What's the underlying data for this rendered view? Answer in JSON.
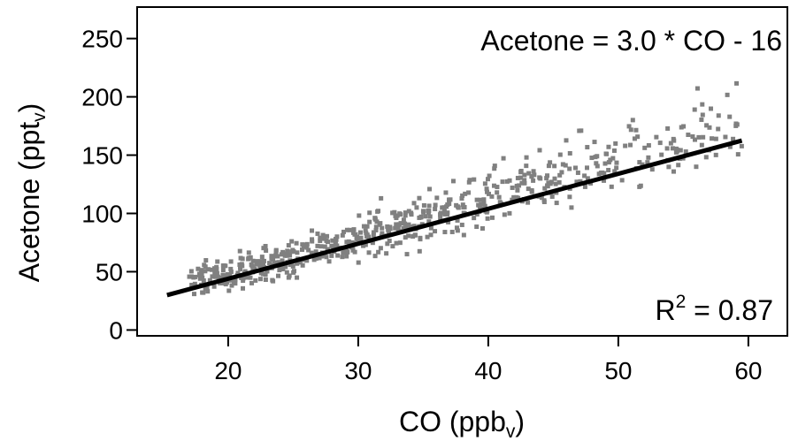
{
  "chart_data": {
    "type": "scatter",
    "xlabel": {
      "main": "CO (ppb",
      "sub": "v",
      "close": ")"
    },
    "ylabel": {
      "main": "Acetone (ppt",
      "sub": "v",
      "close": ")"
    },
    "xlim": [
      13,
      63
    ],
    "ylim": [
      -5,
      277
    ],
    "x_ticks": [
      20,
      30,
      40,
      50,
      60
    ],
    "y_ticks": [
      0,
      50,
      100,
      150,
      200,
      250
    ],
    "grid": false,
    "marker_color": "#808080",
    "fit_color": "#000000",
    "fit_line": {
      "slope": 3.0,
      "intercept": -16,
      "x_range": [
        15.3,
        59.5
      ]
    },
    "annotations": {
      "equation": "Acetone = 3.0 * CO - 16",
      "r2_prefix": "R",
      "r2_sup": "2",
      "r2_value": " = 0.87"
    },
    "scatter_regions": [
      {
        "x_range": [
          17,
          21
        ],
        "y_center": [
          3.0,
          -11
        ],
        "spread": 10,
        "count": 80
      },
      {
        "x_range": [
          21,
          25
        ],
        "y_center": [
          3.0,
          -13
        ],
        "spread": 10,
        "count": 110
      },
      {
        "x_range": [
          25,
          30
        ],
        "y_center": [
          3.0,
          -12
        ],
        "spread": 12,
        "count": 95
      },
      {
        "x_range": [
          30,
          35
        ],
        "y_center": [
          3.0,
          -10
        ],
        "spread": 15,
        "count": 100
      },
      {
        "x_range": [
          35,
          40
        ],
        "y_center": [
          3.0,
          -9
        ],
        "spread": 16,
        "count": 80
      },
      {
        "x_range": [
          40,
          45
        ],
        "y_center": [
          3.0,
          -7
        ],
        "spread": 18,
        "count": 70
      },
      {
        "x_range": [
          45,
          50
        ],
        "y_center": [
          3.0,
          -5
        ],
        "spread": 20,
        "count": 55
      },
      {
        "x_range": [
          50,
          55
        ],
        "y_center": [
          3.0,
          -3
        ],
        "spread": 22,
        "count": 40
      },
      {
        "x_range": [
          55,
          59.5
        ],
        "y_center": [
          3.0,
          2
        ],
        "spread": 24,
        "count": 35
      }
    ]
  }
}
